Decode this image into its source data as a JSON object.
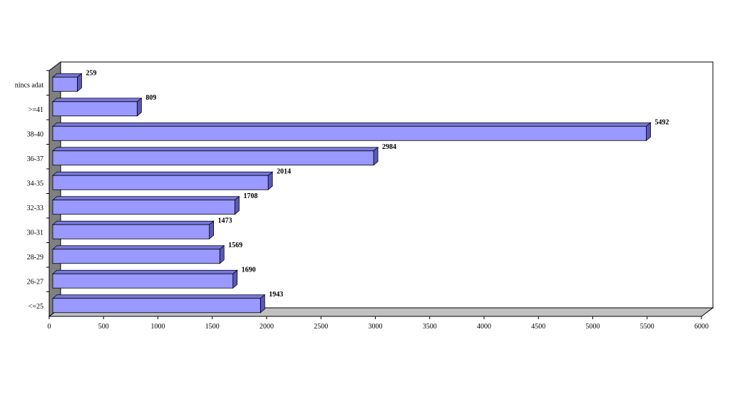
{
  "chart_data": {
    "type": "bar",
    "orientation": "horizontal",
    "style": "3d",
    "categories": [
      "<=25",
      "26-27",
      "28-29",
      "30-31",
      "32-33",
      "34-35",
      "36-37",
      "38-40",
      ">=41",
      "nincs adat"
    ],
    "values": [
      1943,
      1690,
      1569,
      1473,
      1708,
      2014,
      2984,
      5492,
      809,
      259
    ],
    "x_ticks": [
      "0",
      "500",
      "1000",
      "1500",
      "2000",
      "2500",
      "3000",
      "3500",
      "4000",
      "4500",
      "5000",
      "5500",
      "6000"
    ],
    "xlim": [
      0,
      6000
    ],
    "title": "",
    "xlabel": "",
    "ylabel": "",
    "grid": false,
    "legend": "none",
    "colors": {
      "bar_front": "#9999ff",
      "bar_top": "#7777dd",
      "bar_side": "#5a5ab8",
      "bar_stroke": "#000000",
      "back_wall": "#ffffff",
      "side_wall": "#808080",
      "floor": "#c0c0c0"
    }
  }
}
